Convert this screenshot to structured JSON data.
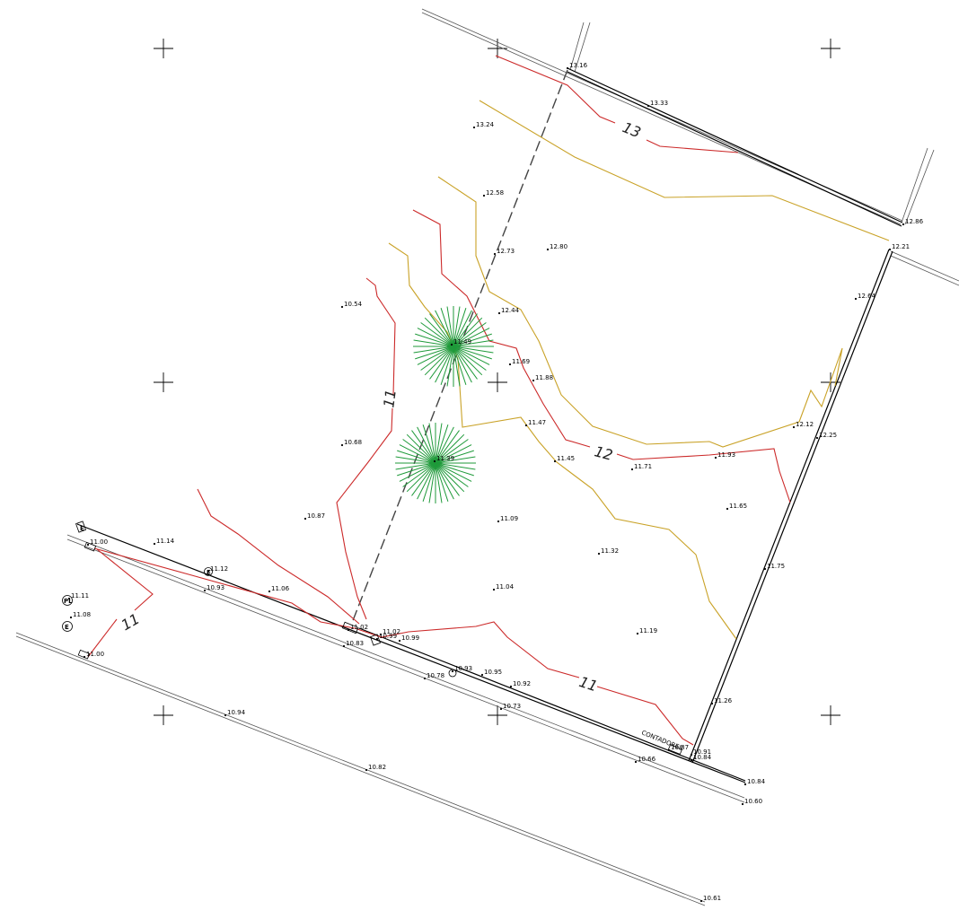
{
  "plan": {
    "colors": {
      "contour_major": "#cc2a2a",
      "contour_minor": "#c9a227",
      "boundary": "#000000",
      "tree": "#1f9a3a",
      "road": "#555555"
    },
    "spot_elevations": [
      "13.16",
      "13.33",
      "13.24",
      "12.58",
      "12.73",
      "12.80",
      "12.86",
      "12.21",
      "12.64",
      "12.44",
      "11.49",
      "11.69",
      "11.88",
      "11.47",
      "11.45",
      "11.71",
      "11.93",
      "12.12",
      "12.25",
      "10.54",
      "10.68",
      "10.87",
      "11.39",
      "11.09",
      "11.65",
      "11.32",
      "11.75",
      "11.04",
      "11.19",
      "11.26",
      "11.00",
      "11.14",
      "11.12",
      "10.93",
      "11.06",
      "11.11",
      "11.08",
      "11.00",
      "11.02",
      "10.99",
      "10.83",
      "11.02",
      "10.99",
      "10.78",
      "10.93",
      "10.95",
      "10.92",
      "10.73",
      "10.94",
      "10.82",
      "10.87",
      "10.91",
      "10.84",
      "10.66",
      "10.84",
      "10.60",
      "10.61"
    ],
    "contour_labels": [
      "13",
      "12",
      "11",
      "11",
      "11"
    ],
    "annotations": {
      "contadores": "CONTADORES"
    },
    "symbol_letters": [
      "E",
      "E",
      "PL",
      "E"
    ],
    "icons": [
      "crosshair-icon",
      "tree-icon",
      "utility-box-icon",
      "meter-icon",
      "well-icon"
    ]
  }
}
